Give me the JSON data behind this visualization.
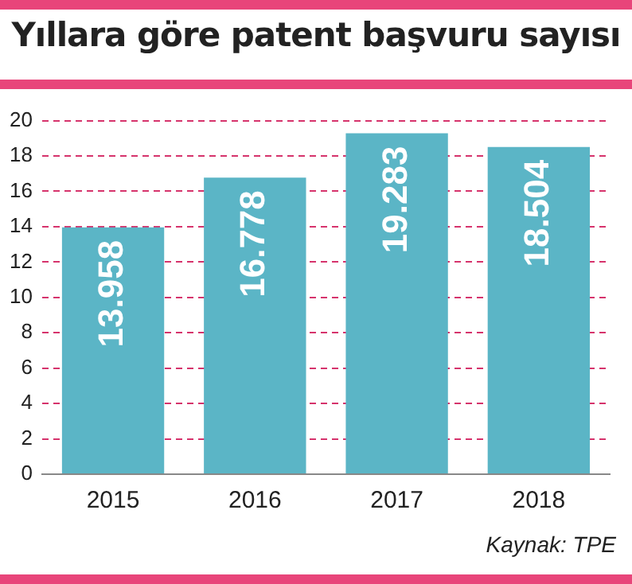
{
  "chart_data": {
    "type": "bar",
    "title": "Yıllara göre patent başvuru sayısı",
    "categories": [
      "2015",
      "2016",
      "2017",
      "2018"
    ],
    "values": [
      13.958,
      16.778,
      19.283,
      18.504
    ],
    "color": "#5bb5c6",
    "ylim": [
      0,
      20
    ],
    "yticks": [
      0,
      2,
      4,
      6,
      8,
      10,
      12,
      14,
      16,
      18,
      20
    ],
    "grid": "y",
    "data_labels": true,
    "annotations": [
      "Kaynak: TPE"
    ]
  }
}
